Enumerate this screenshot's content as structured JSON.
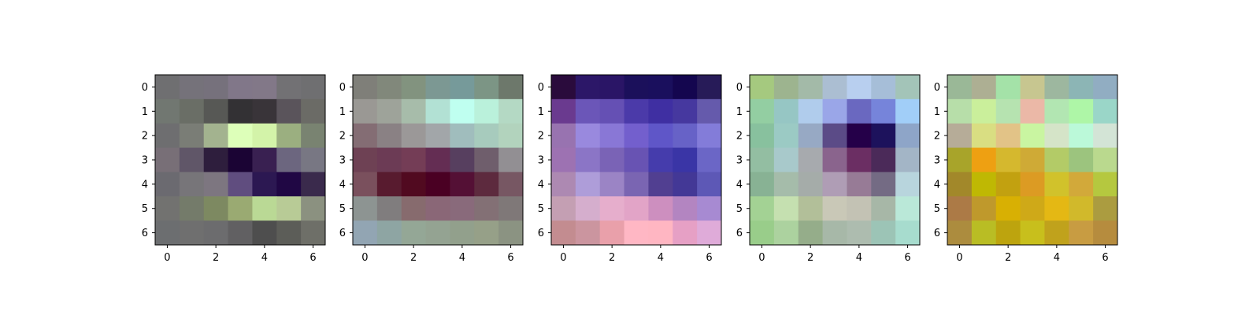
{
  "chart_data": [
    {
      "type": "heatmap",
      "title": "",
      "xlabel": "",
      "ylabel": "",
      "xticks": [
        "0",
        "2",
        "4",
        "6"
      ],
      "yticks": [
        "0",
        "1",
        "2",
        "3",
        "4",
        "5",
        "6"
      ],
      "colors": [
        [
          "#6f6f71",
          "#75727a",
          "#76717c",
          "#817789",
          "#827888",
          "#727174",
          "#6f6f71"
        ],
        [
          "#717771",
          "#6a6e66",
          "#575855",
          "#333134",
          "#393439",
          "#5a545b",
          "#6b6b66"
        ],
        [
          "#6e6e70",
          "#7a7d76",
          "#a3b38f",
          "#ddffb9",
          "#d3f3a9",
          "#9baf80",
          "#798371"
        ],
        [
          "#786f77",
          "#605668",
          "#2e1e3d",
          "#1b0434",
          "#392051",
          "#6c667f",
          "#787783"
        ],
        [
          "#6b6a70",
          "#777579",
          "#7d7680",
          "#604d7f",
          "#2c1852",
          "#200744",
          "#3a2a4c"
        ],
        [
          "#727270",
          "#747b6a",
          "#7d8961",
          "#9aaa72",
          "#bad995",
          "#b8cb96",
          "#8b9180"
        ],
        [
          "#6c6e70",
          "#6f6f6f",
          "#6c6c6e",
          "#616062",
          "#4e4e4e",
          "#5c5d58",
          "#6e6f68"
        ]
      ]
    },
    {
      "type": "heatmap",
      "title": "",
      "xlabel": "",
      "ylabel": "",
      "xticks": [
        "0",
        "2",
        "4",
        "6"
      ],
      "yticks": [
        "0",
        "1",
        "2",
        "3",
        "4",
        "5",
        "6"
      ],
      "colors": [
        [
          "#7f7f79",
          "#81887b",
          "#82937f",
          "#7c9893",
          "#769a9a",
          "#7c9585",
          "#6d786b"
        ],
        [
          "#9a9894",
          "#9ea39a",
          "#a7bcaa",
          "#b2e1d4",
          "#bffff0",
          "#baf1db",
          "#b4d9c4"
        ],
        [
          "#846d74",
          "#8a8184",
          "#9b9898",
          "#a2a6a9",
          "#a0bdbd",
          "#a7cbbd",
          "#b2d3bd"
        ],
        [
          "#6e4154",
          "#6c3b55",
          "#743d56",
          "#642d53",
          "#573f5f",
          "#6f5e6c",
          "#928f93"
        ],
        [
          "#7a505d",
          "#581b2f",
          "#510a20",
          "#4a0023",
          "#541035",
          "#5d2a3e",
          "#775763"
        ],
        [
          "#8d9492",
          "#807d7e",
          "#876b6e",
          "#8a6777",
          "#896a7b",
          "#837075",
          "#7f7878"
        ],
        [
          "#92a5b3",
          "#8ea5a3",
          "#94a796",
          "#94a392",
          "#92a08c",
          "#96a088",
          "#8b9382"
        ]
      ]
    },
    {
      "type": "heatmap",
      "title": "",
      "xlabel": "",
      "ylabel": "",
      "xticks": [
        "0",
        "2",
        "4",
        "6"
      ],
      "yticks": [
        "0",
        "1",
        "2",
        "3",
        "4",
        "5",
        "6"
      ],
      "colors": [
        [
          "#2a0b3c",
          "#2c1768",
          "#2a1566",
          "#1b105b",
          "#1a0f5d",
          "#14064f",
          "#271b58"
        ],
        [
          "#6a3a8f",
          "#6b56b8",
          "#6550b4",
          "#4b3aa9",
          "#3f2fa2",
          "#46389f",
          "#655aac"
        ],
        [
          "#9873b0",
          "#9989de",
          "#8977d6",
          "#735fcd",
          "#5f56c8",
          "#6762c7",
          "#837cd9"
        ],
        [
          "#9d72b2",
          "#8b75c6",
          "#7a63b6",
          "#6853b3",
          "#453cac",
          "#3a35a6",
          "#6b66c6"
        ],
        [
          "#ad89b2",
          "#ae9dd9",
          "#9b84c5",
          "#7a65b2",
          "#513f91",
          "#433896",
          "#5d58b6"
        ],
        [
          "#c49fb3",
          "#d5aecd",
          "#e6aecc",
          "#e2a4c7",
          "#cd8fbf",
          "#b385c1",
          "#a78ad2"
        ],
        [
          "#c38c90",
          "#cb959f",
          "#e9a0aa",
          "#ffb7c4",
          "#ffb6c2",
          "#e6a0c5",
          "#dfabd9"
        ]
      ]
    },
    {
      "type": "heatmap",
      "title": "",
      "xlabel": "",
      "ylabel": "",
      "xticks": [
        "0",
        "2",
        "4",
        "6"
      ],
      "yticks": [
        "0",
        "1",
        "2",
        "3",
        "4",
        "5",
        "6"
      ],
      "colors": [
        [
          "#a5c97f",
          "#9db48f",
          "#a3baa8",
          "#abbed2",
          "#b8cfef",
          "#a6bed8",
          "#a3c4b8"
        ],
        [
          "#93cea2",
          "#96c6c4",
          "#b0ccec",
          "#9aa6e8",
          "#6a68c0",
          "#7684da",
          "#a1cef8"
        ],
        [
          "#88c19e",
          "#9bcac4",
          "#97a9c4",
          "#5b4b87",
          "#250049",
          "#1d125c",
          "#8ea5c8"
        ],
        [
          "#93bea2",
          "#a8c9cb",
          "#a7aaae",
          "#8a648d",
          "#6b2e63",
          "#4b2a59",
          "#a3b5c6"
        ],
        [
          "#88b294",
          "#a5bcaa",
          "#a5aca9",
          "#af9db5",
          "#977b96",
          "#746b84",
          "#b8d5dd"
        ],
        [
          "#a3d294",
          "#c5e0b0",
          "#b2bf99",
          "#c9c8b7",
          "#c3c2b4",
          "#a7b7a7",
          "#bae8d8"
        ],
        [
          "#99cd8a",
          "#acd29f",
          "#95ad8a",
          "#a7b8a8",
          "#adbcaf",
          "#9cc4b6",
          "#a7dcce"
        ]
      ]
    },
    {
      "type": "heatmap",
      "title": "",
      "xlabel": "",
      "ylabel": "",
      "xticks": [
        "0",
        "2",
        "4",
        "6"
      ],
      "yticks": [
        "0",
        "1",
        "2",
        "3",
        "4",
        "5",
        "6"
      ],
      "colors": [
        [
          "#9ab897",
          "#adaf93",
          "#a4e2a8",
          "#c7c690",
          "#9db79f",
          "#8cb5b5",
          "#91adc2"
        ],
        [
          "#b7dea9",
          "#caef9b",
          "#b6e3b0",
          "#ebb8a7",
          "#b2e6b2",
          "#aef6a7",
          "#9ad6c8"
        ],
        [
          "#b6ac98",
          "#d9de82",
          "#e2c387",
          "#c9f5a1",
          "#d5e4c8",
          "#bbf9d9",
          "#d3e4d6"
        ],
        [
          "#a8a42a",
          "#eea012",
          "#d5b82e",
          "#cfaa36",
          "#b3cb67",
          "#9cc47e",
          "#bad98e"
        ],
        [
          "#a2882a",
          "#bfb803",
          "#c2a110",
          "#dc9b23",
          "#d1c22b",
          "#d2a93a",
          "#b5c83f"
        ],
        [
          "#ac7a46",
          "#bf992c",
          "#d8b003",
          "#cfa918",
          "#e4b814",
          "#d1b92b",
          "#ab9c40"
        ],
        [
          "#ac8c3e",
          "#b9bd24",
          "#bda40e",
          "#c8bf1c",
          "#c0a21c",
          "#c89c42",
          "#b68c3e"
        ]
      ]
    }
  ]
}
